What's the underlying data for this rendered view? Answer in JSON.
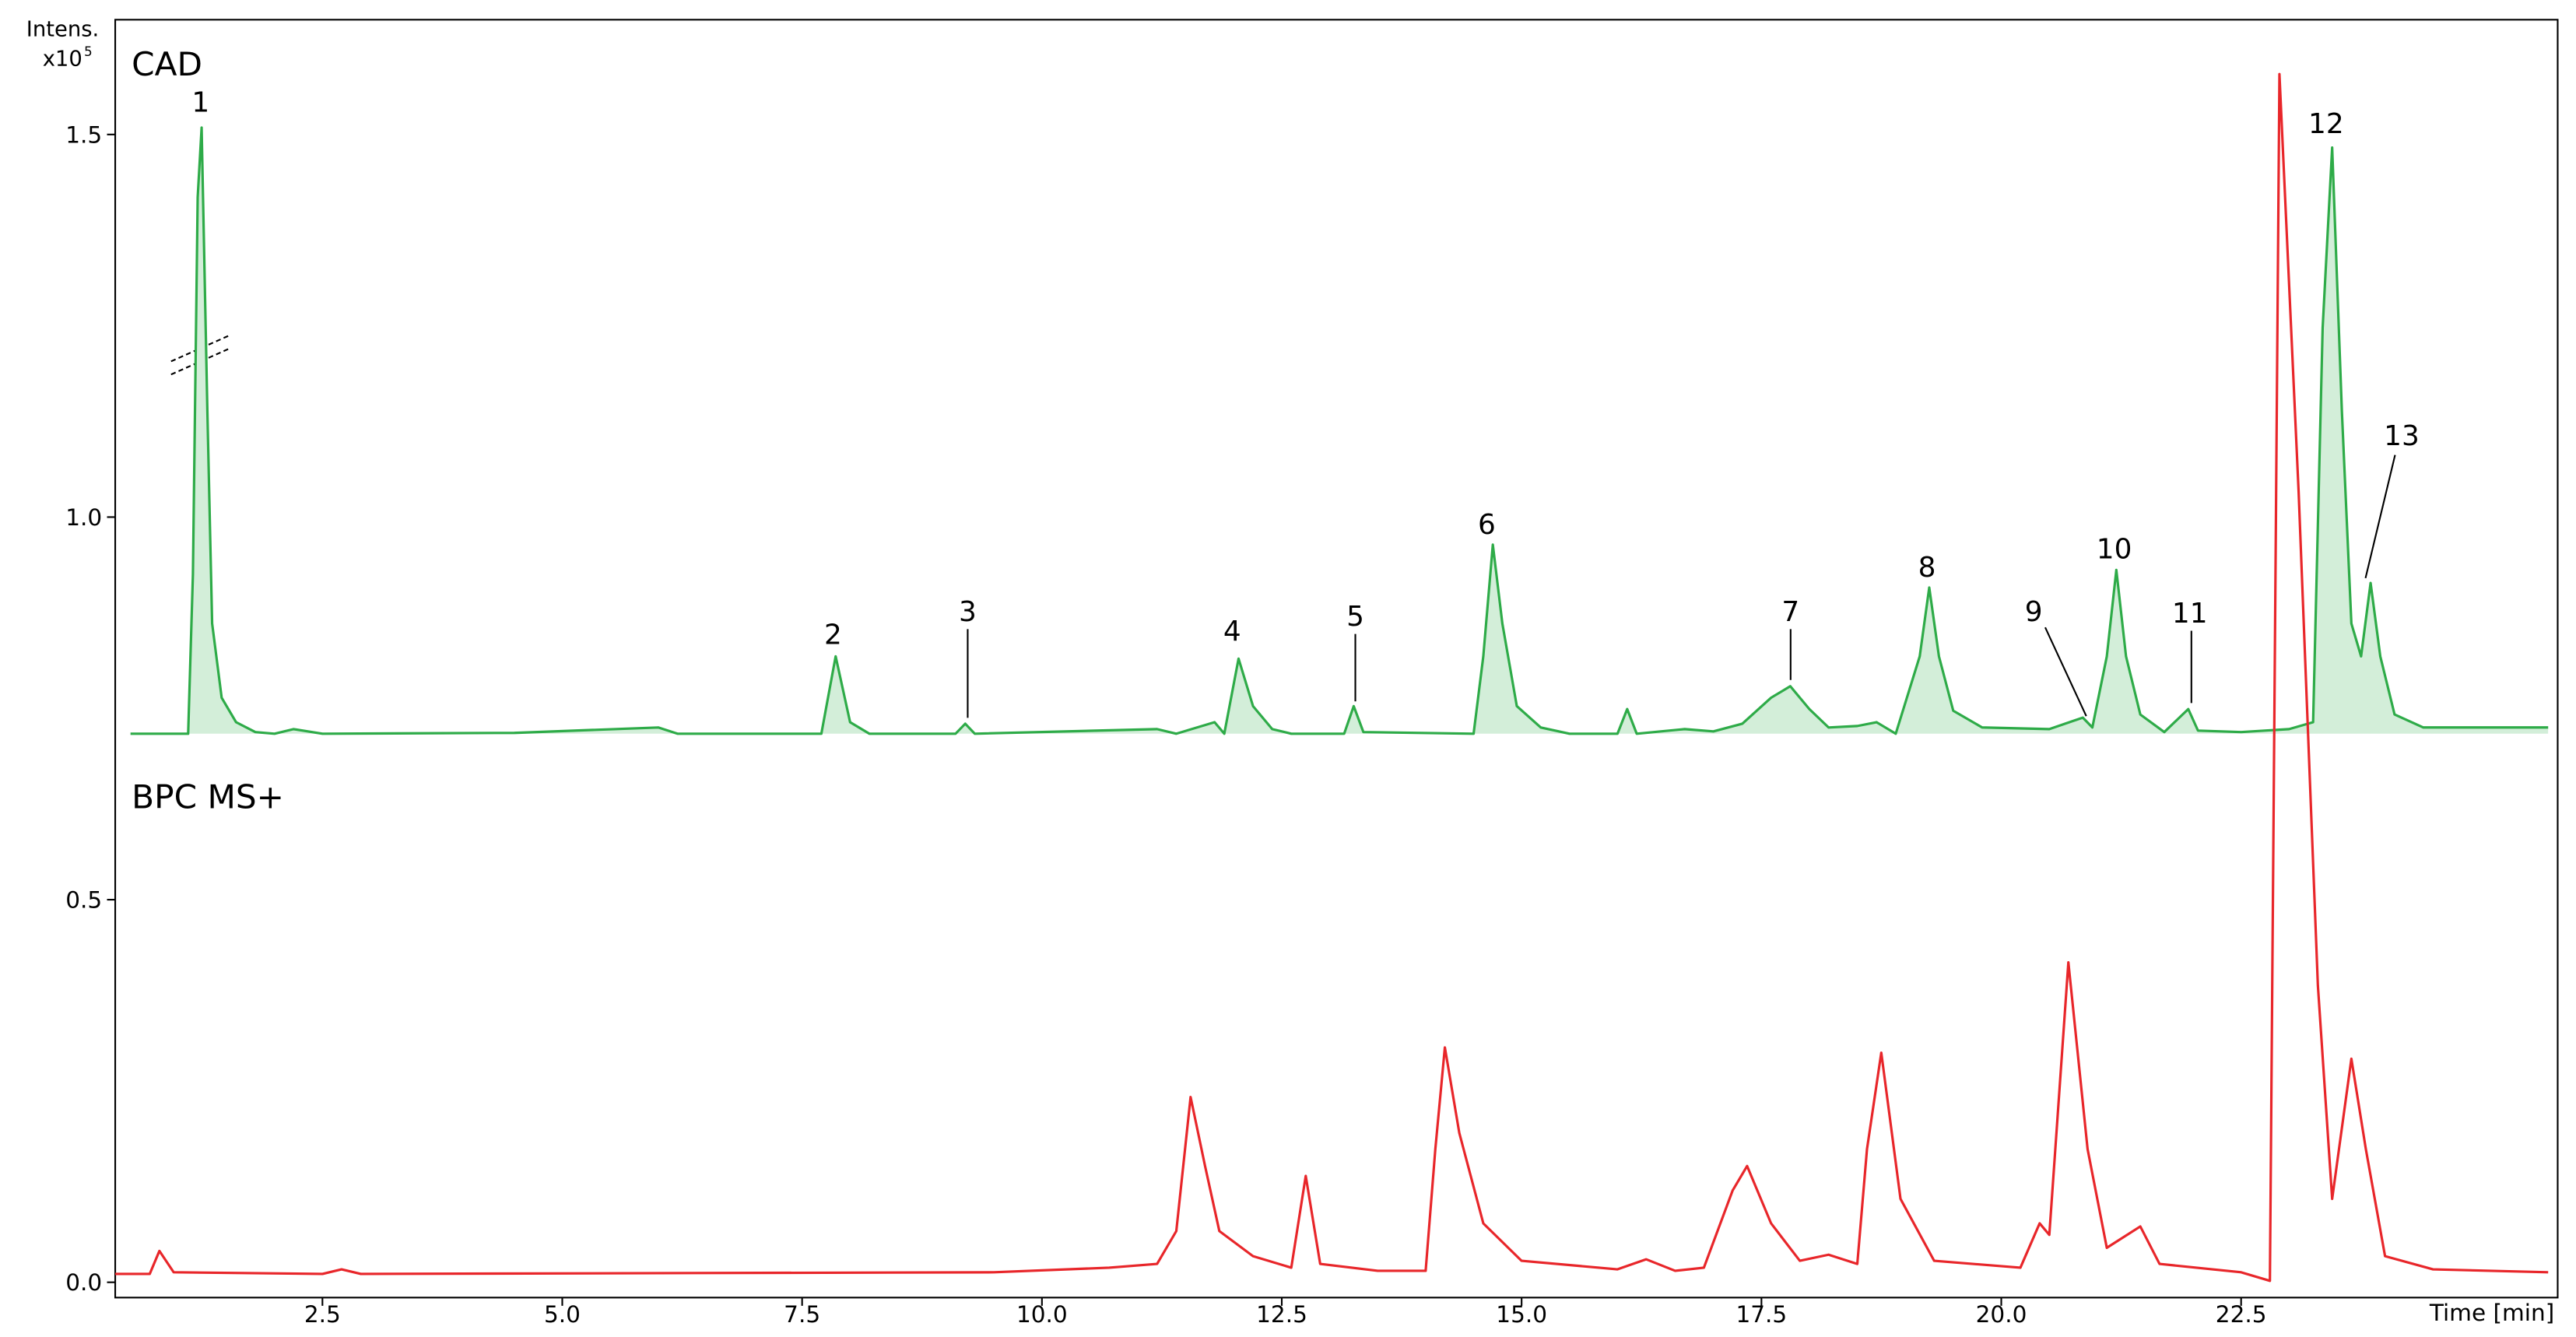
{
  "chart_data": {
    "type": "line",
    "y_label": "Intens.",
    "y_scale_label": "x10",
    "y_scale_exponent": "5",
    "x_label": "Time [min]",
    "xlim": [
      0.34,
      25.8
    ],
    "ylim": [
      -0.02,
      1.65
    ],
    "xticks": [
      2.5,
      {
        "value": 5,
        "label": "5.0"
      },
      7.5,
      {
        "value": 10,
        "label": "10.0"
      },
      12.5,
      {
        "value": 15,
        "label": "15.0"
      },
      17.5,
      {
        "value": 20,
        "label": "20.0"
      },
      22.5
    ],
    "yticks": [
      {
        "value": 0,
        "label": "0.0"
      },
      0.5,
      {
        "value": 1,
        "label": "1.0"
      },
      1.5
    ],
    "peak_labels": [
      "1",
      "2",
      "3",
      "4",
      "5",
      "6",
      "7",
      "8",
      "9",
      "10",
      "11",
      "12",
      "13"
    ],
    "series": [
      {
        "name": "CAD",
        "color": "#2eab48",
        "fill": "#d3eed9",
        "x": [
          0.5,
          1.1,
          1.15,
          1.2,
          1.24,
          1.3,
          1.35,
          1.45,
          1.6,
          1.8,
          2.0,
          2.2,
          2.5,
          4.5,
          6.0,
          6.2,
          7.7,
          7.85,
          8.0,
          8.2,
          9.1,
          9.2,
          9.3,
          11.2,
          11.4,
          11.8,
          11.9,
          12.05,
          12.2,
          12.4,
          12.6,
          13.15,
          13.25,
          13.35,
          14.5,
          14.6,
          14.7,
          14.8,
          14.95,
          15.2,
          15.5,
          16.0,
          16.1,
          16.2,
          16.7,
          17.0,
          17.3,
          17.6,
          17.8,
          18.0,
          18.2,
          18.5,
          18.7,
          18.9,
          19.15,
          19.25,
          19.35,
          19.5,
          19.8,
          20.5,
          20.85,
          20.95,
          21.1,
          21.2,
          21.3,
          21.45,
          21.7,
          21.95,
          22.05,
          22.5,
          23.0,
          23.25,
          23.35,
          23.45,
          23.55,
          23.65,
          23.75,
          23.85,
          23.95,
          24.1,
          24.4,
          25.7
        ],
        "values": [
          0.717,
          0.717,
          0.925,
          1.418,
          1.509,
          1.139,
          0.861,
          0.764,
          0.732,
          0.719,
          0.717,
          0.723,
          0.717,
          0.718,
          0.725,
          0.717,
          0.717,
          0.818,
          0.732,
          0.717,
          0.717,
          0.73,
          0.717,
          0.723,
          0.717,
          0.732,
          0.717,
          0.815,
          0.753,
          0.723,
          0.717,
          0.717,
          0.753,
          0.719,
          0.717,
          0.818,
          0.964,
          0.861,
          0.753,
          0.725,
          0.717,
          0.717,
          0.749,
          0.717,
          0.723,
          0.72,
          0.73,
          0.764,
          0.779,
          0.749,
          0.725,
          0.727,
          0.732,
          0.717,
          0.818,
          0.908,
          0.818,
          0.747,
          0.725,
          0.723,
          0.738,
          0.725,
          0.818,
          0.931,
          0.818,
          0.742,
          0.719,
          0.749,
          0.721,
          0.719,
          0.723,
          0.732,
          1.247,
          1.483,
          1.139,
          0.861,
          0.818,
          0.914,
          0.818,
          0.742,
          0.725,
          0.725
        ]
      },
      {
        "name": "BPC MS+",
        "color": "#e8262a",
        "x": [
          0.34,
          0.7,
          0.8,
          0.95,
          2.5,
          2.7,
          2.9,
          9.5,
          10.7,
          11.2,
          11.4,
          11.55,
          11.7,
          11.85,
          12.2,
          12.6,
          12.75,
          12.9,
          13.5,
          14.0,
          14.1,
          14.2,
          14.35,
          14.6,
          15.0,
          16.0,
          16.3,
          16.6,
          16.9,
          17.2,
          17.35,
          17.6,
          17.9,
          18.2,
          18.5,
          18.6,
          18.75,
          18.95,
          19.3,
          20.2,
          20.4,
          20.5,
          20.7,
          20.9,
          21.1,
          21.45,
          21.65,
          22.5,
          22.8,
          22.9,
          23.1,
          23.3,
          23.45,
          23.65,
          23.8,
          24.0,
          24.5,
          25.7
        ],
        "values": [
          0.011,
          0.011,
          0.041,
          0.013,
          0.011,
          0.017,
          0.011,
          0.013,
          0.019,
          0.024,
          0.067,
          0.242,
          0.152,
          0.067,
          0.034,
          0.019,
          0.139,
          0.024,
          0.015,
          0.015,
          0.174,
          0.307,
          0.195,
          0.077,
          0.028,
          0.017,
          0.03,
          0.015,
          0.019,
          0.12,
          0.152,
          0.077,
          0.028,
          0.036,
          0.024,
          0.174,
          0.3,
          0.109,
          0.028,
          0.019,
          0.077,
          0.062,
          0.418,
          0.174,
          0.045,
          0.073,
          0.024,
          0.013,
          0.002,
          1.579,
          1.032,
          0.388,
          0.109,
          0.292,
          0.174,
          0.034,
          0.017,
          0.013
        ]
      }
    ]
  }
}
